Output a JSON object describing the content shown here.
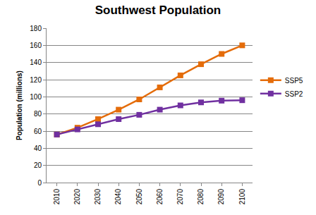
{
  "chart_data": {
    "type": "line",
    "title": "Southwest Population",
    "y_label": "Population (millions)",
    "categories": [
      "2010",
      "2020",
      "2030",
      "2040",
      "2050",
      "2060",
      "2070",
      "2080",
      "2090",
      "2100"
    ],
    "series": [
      {
        "name": "SSP5",
        "color": "#E46C0A",
        "marker": "square",
        "values": [
          56,
          64,
          74,
          85,
          97,
          111,
          125,
          138,
          150,
          160
        ]
      },
      {
        "name": "SSP2",
        "color": "#7030A0",
        "marker": "square",
        "values": [
          56,
          62,
          68,
          74,
          79,
          85,
          90,
          93.5,
          95.5,
          96
        ]
      }
    ],
    "ylim": [
      0,
      180
    ],
    "yticks": [
      0,
      20,
      40,
      60,
      80,
      100,
      120,
      140,
      160,
      180
    ],
    "grid": true,
    "legend": "right"
  }
}
